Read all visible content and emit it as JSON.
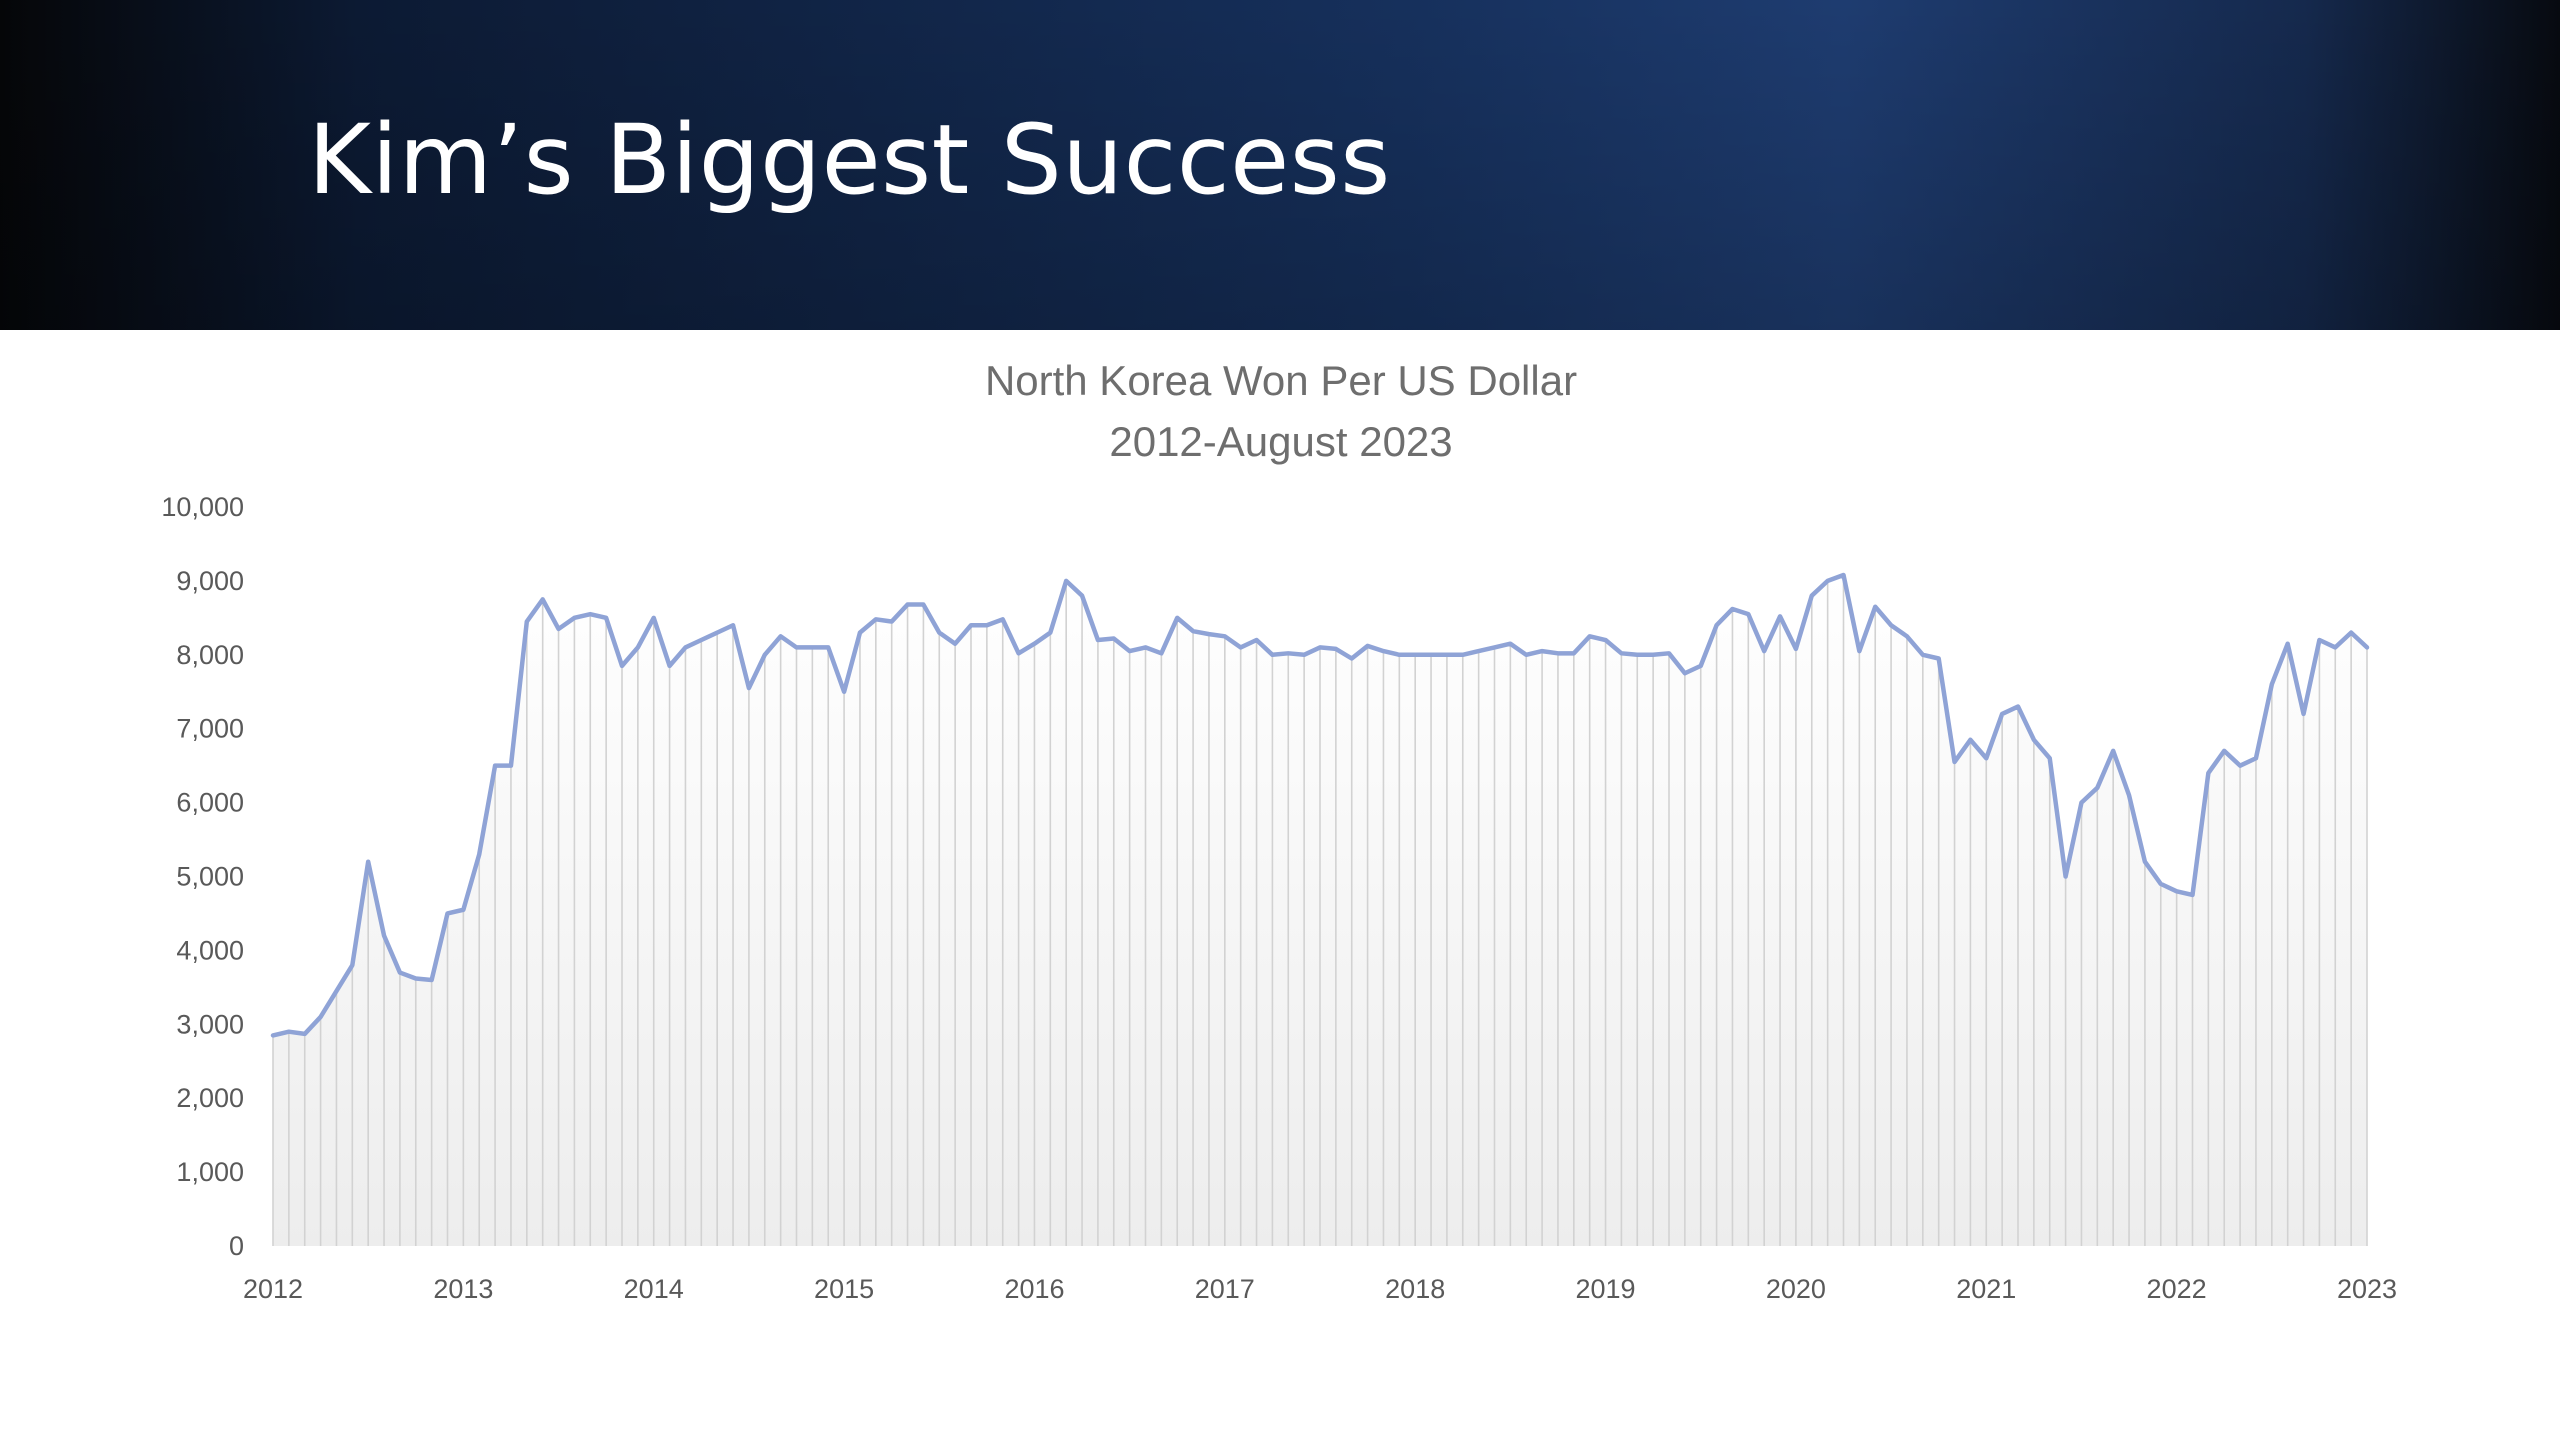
{
  "slide": {
    "title": "Kim’s Biggest Success"
  },
  "chart_data": {
    "type": "line",
    "title": "North Korea Won Per US Dollar",
    "subtitle": "2012-August 2023",
    "xlabel": "",
    "ylabel": "",
    "ylim": [
      0,
      10000
    ],
    "xlim": [
      2012,
      2023
    ],
    "yticks": [
      "0",
      "1,000",
      "2,000",
      "3,000",
      "4,000",
      "5,000",
      "6,000",
      "7,000",
      "8,000",
      "9,000",
      "10,000"
    ],
    "xticks": [
      "2012",
      "2013",
      "2014",
      "2015",
      "2016",
      "2017",
      "2018",
      "2019",
      "2020",
      "2021",
      "2022",
      "2023"
    ],
    "grid": "vertical drop lines under series",
    "legend": "none",
    "line_color": "#8fa3d6",
    "series": [
      {
        "x_start": 2012,
        "step_months": 1,
        "values": [
          2850,
          2900,
          2870,
          3100,
          3450,
          3800,
          5200,
          4200,
          3700,
          3620,
          3600,
          4500,
          4550,
          5300,
          6500,
          6500,
          8450,
          8750,
          8350,
          8500,
          8550,
          8500,
          7850,
          8100,
          8500,
          7850,
          8100,
          8200,
          8300,
          8400,
          7550,
          8000,
          8250,
          8100,
          8100,
          8100,
          7500,
          8300,
          8480,
          8450,
          8680,
          8680,
          8300,
          8150,
          8400,
          8400,
          8480,
          8020,
          8150,
          8300,
          9000,
          8800,
          8200,
          8220,
          8050,
          8100,
          8020,
          8500,
          8320,
          8280,
          8250,
          8100,
          8200,
          8000,
          8020,
          8000,
          8100,
          8080,
          7950,
          8120,
          8050,
          8000,
          8000,
          8000,
          8000,
          8000,
          8050,
          8100,
          8150,
          8000,
          8050,
          8020,
          8020,
          8250,
          8200,
          8020,
          8000,
          8000,
          8020,
          7750,
          7850,
          8400,
          8620,
          8550,
          8050,
          8520,
          8080,
          8800,
          9000,
          9080,
          8050,
          8650,
          8400,
          8250,
          8000,
          7950,
          6550,
          6850,
          6600,
          7200,
          7300,
          6850,
          6600,
          5000,
          6000,
          6200,
          6700,
          6100,
          5200,
          4900,
          4800,
          4750,
          6400,
          6700,
          6500,
          6600,
          7600,
          8150,
          7200,
          8200,
          8100,
          8300,
          8100
        ]
      }
    ]
  }
}
